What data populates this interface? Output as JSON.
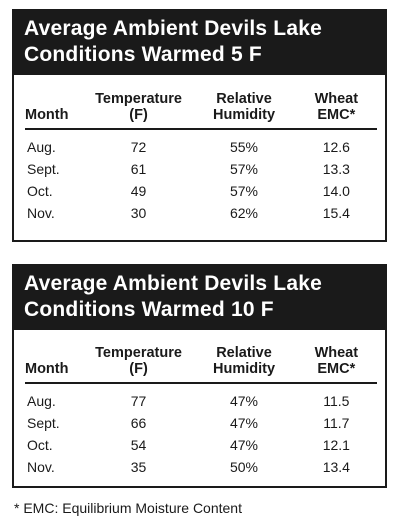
{
  "tables": [
    {
      "title_line1": "Average Ambient Devils Lake",
      "title_line2": "Conditions Warmed 5 F",
      "headers": {
        "month": "Month",
        "temperature_line1": "Temperature",
        "temperature_line2": "(F)",
        "humidity_line1": "Relative",
        "humidity_line2": "Humidity",
        "emc_line1": "Wheat",
        "emc_line2": "EMC*"
      },
      "rows": [
        {
          "month": "Aug.",
          "temperature": "72",
          "humidity": "55%",
          "emc": "12.6"
        },
        {
          "month": "Sept.",
          "temperature": "61",
          "humidity": "57%",
          "emc": "13.3"
        },
        {
          "month": "Oct.",
          "temperature": "49",
          "humidity": "57%",
          "emc": "14.0"
        },
        {
          "month": "Nov.",
          "temperature": "30",
          "humidity": "62%",
          "emc": "15.4"
        }
      ]
    },
    {
      "title_line1": "Average Ambient Devils Lake",
      "title_line2": "Conditions Warmed 10 F",
      "headers": {
        "month": "Month",
        "temperature_line1": "Temperature",
        "temperature_line2": "(F)",
        "humidity_line1": "Relative",
        "humidity_line2": "Humidity",
        "emc_line1": "Wheat",
        "emc_line2": "EMC*"
      },
      "rows": [
        {
          "month": "Aug.",
          "temperature": "77",
          "humidity": "47%",
          "emc": "11.5"
        },
        {
          "month": "Sept.",
          "temperature": "66",
          "humidity": "47%",
          "emc": "11.7"
        },
        {
          "month": "Oct.",
          "temperature": "54",
          "humidity": "47%",
          "emc": "12.1"
        },
        {
          "month": "Nov.",
          "temperature": "35",
          "humidity": "50%",
          "emc": "13.4"
        }
      ]
    }
  ],
  "footnote": "* EMC: Equilibrium Moisture Content"
}
